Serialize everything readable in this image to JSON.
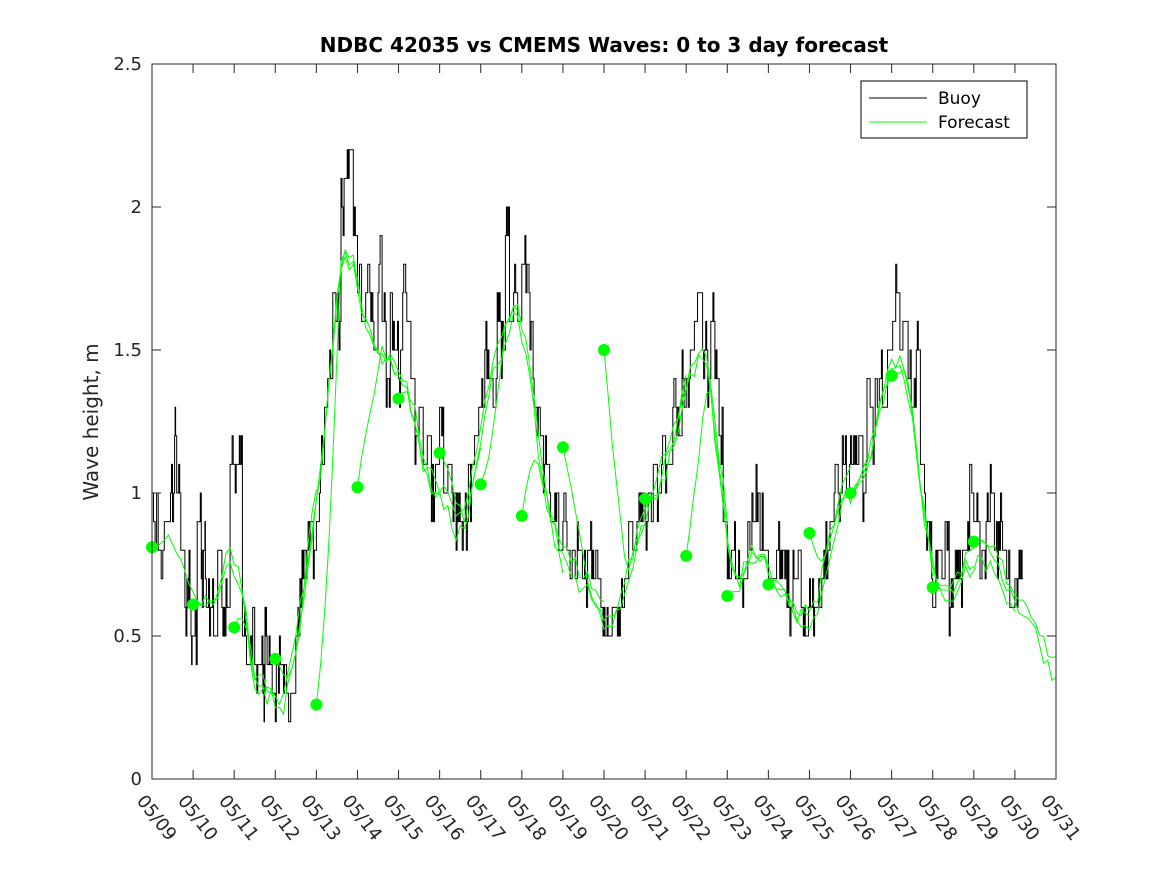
{
  "chart_data": {
    "type": "line",
    "title": "NDBC 42035 vs CMEMS Waves: 0 to 3 day forecast",
    "xlabel": "",
    "ylabel": "Wave height, m",
    "xlim": [
      0,
      22
    ],
    "ylim": [
      0,
      2.5
    ],
    "grid": false,
    "legend_position": "top-right",
    "x_tick_labels": [
      "05/09",
      "05/10",
      "05/11",
      "05/12",
      "05/13",
      "05/14",
      "05/15",
      "05/16",
      "05/17",
      "05/18",
      "05/19",
      "05/20",
      "05/21",
      "05/22",
      "05/23",
      "05/24",
      "05/25",
      "05/26",
      "05/27",
      "05/28",
      "05/29",
      "05/30",
      "05/31"
    ],
    "y_ticks": [
      0,
      0.5,
      1,
      1.5,
      2,
      2.5
    ],
    "y_tick_labels": [
      "0",
      "0.5",
      "1",
      "1.5",
      "2",
      "2.5"
    ],
    "legend": [
      {
        "name": "Buoy",
        "color": "#000000"
      },
      {
        "name": "Forecast",
        "color": "#00ff00"
      }
    ],
    "colors": {
      "buoy": "#000000",
      "forecast": "#00ff00"
    },
    "buoy": {
      "name": "Buoy",
      "x": [
        0,
        0.15,
        0.3,
        0.45,
        0.55,
        0.6,
        0.7,
        0.8,
        0.85,
        0.95,
        1.0,
        1.1,
        1.2,
        1.25,
        1.3,
        1.4,
        1.5,
        1.6,
        1.7,
        1.8,
        1.9,
        2.0,
        2.1,
        2.2,
        2.3,
        2.4,
        2.5,
        2.6,
        2.7,
        2.75,
        2.8,
        2.9,
        3.0,
        3.1,
        3.2,
        3.3,
        3.4,
        3.5,
        3.6,
        3.7,
        3.8,
        3.9,
        4.0,
        4.1,
        4.2,
        4.3,
        4.4,
        4.5,
        4.6,
        4.7,
        4.8,
        4.9,
        5.0,
        5.1,
        5.2,
        5.3,
        5.4,
        5.5,
        5.6,
        5.7,
        5.8,
        5.9,
        6.0,
        6.1,
        6.2,
        6.3,
        6.4,
        6.5,
        6.6,
        6.7,
        6.8,
        6.9,
        7.0,
        7.1,
        7.2,
        7.3,
        7.4,
        7.5,
        7.6,
        7.7,
        7.8,
        7.9,
        8.0,
        8.1,
        8.2,
        8.3,
        8.4,
        8.5,
        8.6,
        8.7,
        8.8,
        8.9,
        9.0,
        9.1,
        9.2,
        9.3,
        9.4,
        9.5,
        9.6,
        9.7,
        9.8,
        9.9,
        10.0,
        10.1,
        10.2,
        10.3,
        10.4,
        10.5,
        10.6,
        10.7,
        10.8,
        10.9,
        11.0,
        11.1,
        11.2,
        11.3,
        11.4,
        11.5,
        11.6,
        11.7,
        11.8,
        11.9,
        12.0,
        12.1,
        12.2,
        12.3,
        12.4,
        12.5,
        12.6,
        12.7,
        12.8,
        12.9,
        13.0,
        13.1,
        13.2,
        13.3,
        13.4,
        13.5,
        13.6,
        13.7,
        13.8,
        13.9,
        14.0,
        14.1,
        14.2,
        14.3,
        14.4,
        14.5,
        14.6,
        14.7,
        14.8,
        14.9,
        15.0,
        15.1,
        15.2,
        15.3,
        15.4,
        15.5,
        15.6,
        15.7,
        15.8,
        15.9,
        16.0,
        16.1,
        16.2,
        16.3,
        16.4,
        16.5,
        16.6,
        16.7,
        16.8,
        16.9,
        17.0,
        17.1,
        17.2,
        17.3,
        17.4,
        17.5,
        17.6,
        17.7,
        17.8,
        17.9,
        18.0,
        18.1,
        18.2,
        18.3,
        18.4,
        18.5,
        18.6,
        18.7,
        18.8,
        18.9,
        19.0,
        19.1,
        19.2,
        19.3,
        19.4,
        19.5,
        19.6,
        19.7,
        19.8,
        19.9,
        20.0,
        20.1,
        20.2,
        20.3,
        20.4,
        20.5,
        20.6,
        20.7,
        20.8,
        20.9,
        21.0,
        21.1,
        21.2
      ],
      "y": [
        0.9,
        0.8,
        0.9,
        1.0,
        1.2,
        1.0,
        0.8,
        0.6,
        0.7,
        0.5,
        0.5,
        0.9,
        0.7,
        0.8,
        0.7,
        0.6,
        0.5,
        0.8,
        0.6,
        0.7,
        1.1,
        1.0,
        1.1,
        0.5,
        0.4,
        0.5,
        0.3,
        0.4,
        0.3,
        0.5,
        0.4,
        0.3,
        0.3,
        0.4,
        0.3,
        0.2,
        0.3,
        0.5,
        0.7,
        0.8,
        0.9,
        0.8,
        0.9,
        1.1,
        1.3,
        1.4,
        1.7,
        1.6,
        2.0,
        2.1,
        2.2,
        1.9,
        1.7,
        1.5,
        1.7,
        1.6,
        1.5,
        1.8,
        1.6,
        1.3,
        1.6,
        1.5,
        1.4,
        1.7,
        1.6,
        1.4,
        1.2,
        1.3,
        1.1,
        1.2,
        1.0,
        1.1,
        1.2,
        1.0,
        1.1,
        1.0,
        0.9,
        0.9,
        0.9,
        1.0,
        1.1,
        1.2,
        1.3,
        1.5,
        1.4,
        1.3,
        1.6,
        1.5,
        1.9,
        1.6,
        1.7,
        1.6,
        1.8,
        1.7,
        1.5,
        1.3,
        1.2,
        1.1,
        1.0,
        0.9,
        1.0,
        0.8,
        0.9,
        0.8,
        0.7,
        0.8,
        0.7,
        0.7,
        0.8,
        0.7,
        0.7,
        0.6,
        0.6,
        0.5,
        0.6,
        0.6,
        0.6,
        0.7,
        0.8,
        0.8,
        0.9,
        1.0,
        0.9,
        1.0,
        1.1,
        1.0,
        1.1,
        1.1,
        1.2,
        1.3,
        1.2,
        1.4,
        1.3,
        1.5,
        1.6,
        1.7,
        1.5,
        1.4,
        1.6,
        1.4,
        1.2,
        0.9,
        0.7,
        0.8,
        0.7,
        0.7,
        0.7,
        0.8,
        0.9,
        1.0,
        0.9,
        0.8,
        0.7,
        0.7,
        0.8,
        0.7,
        0.7,
        0.6,
        0.7,
        0.7,
        0.6,
        0.5,
        0.6,
        0.6,
        0.6,
        0.7,
        0.8,
        0.9,
        1.0,
        1.0,
        1.1,
        1.0,
        1.1,
        1.1,
        1.2,
        1.0,
        1.3,
        1.2,
        1.3,
        1.4,
        1.3,
        1.5,
        1.6,
        1.7,
        1.5,
        1.6,
        1.4,
        1.3,
        1.5,
        1.1,
        0.9,
        0.8,
        0.7,
        0.8,
        0.7,
        0.8,
        0.6,
        0.7,
        0.8,
        0.7,
        0.8,
        1.0,
        0.9,
        0.8,
        0.7,
        0.9,
        1.0,
        0.8,
        0.9,
        0.8,
        0.7,
        0.6,
        0.7,
        0.7,
        0.7
      ]
    },
    "forecast_starts": [
      {
        "x": 0,
        "y": 0.81
      },
      {
        "x": 1,
        "y": 0.61
      },
      {
        "x": 2,
        "y": 0.53
      },
      {
        "x": 3,
        "y": 0.42
      },
      {
        "x": 4,
        "y": 0.26
      },
      {
        "x": 5,
        "y": 1.02
      },
      {
        "x": 6,
        "y": 1.33
      },
      {
        "x": 7,
        "y": 1.14
      },
      {
        "x": 8,
        "y": 1.03
      },
      {
        "x": 9,
        "y": 0.92
      },
      {
        "x": 10,
        "y": 1.16
      },
      {
        "x": 11,
        "y": 1.5
      },
      {
        "x": 12,
        "y": 0.98
      },
      {
        "x": 13,
        "y": 0.78
      },
      {
        "x": 14,
        "y": 0.64
      },
      {
        "x": 15,
        "y": 0.68
      },
      {
        "x": 16,
        "y": 0.86
      },
      {
        "x": 17,
        "y": 1.0
      },
      {
        "x": 18,
        "y": 1.41
      },
      {
        "x": 19,
        "y": 0.67
      },
      {
        "x": 20,
        "y": 0.83
      }
    ],
    "forecast_tail_end": {
      "x": 22,
      "y": 0.4
    }
  }
}
